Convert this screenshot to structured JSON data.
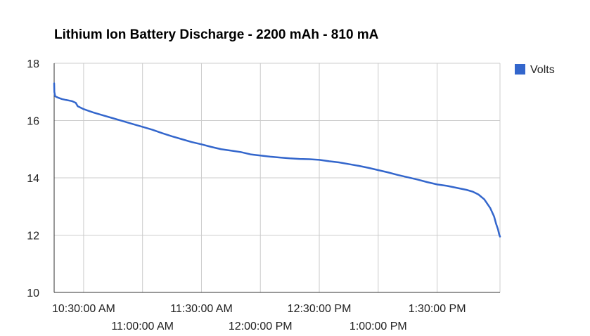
{
  "chart_data": {
    "type": "line",
    "title": "Lithium Ion Battery Discharge - 2200 mAh - 810 mA",
    "xlabel": "",
    "ylabel": "",
    "ylim": [
      10,
      18
    ],
    "yticks": [
      "10",
      "12",
      "14",
      "16",
      "18"
    ],
    "xlim": [
      "10:15:00",
      "14:02:00"
    ],
    "xticks": [
      {
        "time": "10:30:00",
        "label": "10:30:00 AM",
        "row": 1
      },
      {
        "time": "11:00:00",
        "label": "11:00:00 AM",
        "row": 2
      },
      {
        "time": "11:30:00",
        "label": "11:30:00 AM",
        "row": 1
      },
      {
        "time": "12:00:00",
        "label": "12:00:00 PM",
        "row": 2
      },
      {
        "time": "12:30:00",
        "label": "12:30:00 PM",
        "row": 1
      },
      {
        "time": "13:00:00",
        "label": "1:00:00 PM",
        "row": 2
      },
      {
        "time": "13:30:00",
        "label": "1:30:00 PM",
        "row": 1
      }
    ],
    "grid": true,
    "legend_position": "right",
    "series": [
      {
        "name": "Volts",
        "color": "#3366cc",
        "x": [
          "10:15:00",
          "10:15:06",
          "10:15:30",
          "10:16:00",
          "10:17:00",
          "10:19:00",
          "10:21:00",
          "10:24:00",
          "10:26:00",
          "10:27:00",
          "10:30:00",
          "10:35:00",
          "10:40:00",
          "10:45:00",
          "10:50:00",
          "10:55:00",
          "11:00:00",
          "11:05:00",
          "11:10:00",
          "11:15:00",
          "11:20:00",
          "11:25:00",
          "11:30:00",
          "11:35:00",
          "11:40:00",
          "11:45:00",
          "11:50:00",
          "11:55:00",
          "12:00:00",
          "12:05:00",
          "12:10:00",
          "12:15:00",
          "12:20:00",
          "12:25:00",
          "12:30:00",
          "12:35:00",
          "12:40:00",
          "12:45:00",
          "12:50:00",
          "12:55:00",
          "13:00:00",
          "13:05:00",
          "13:10:00",
          "13:15:00",
          "13:20:00",
          "13:25:00",
          "13:30:00",
          "13:35:00",
          "13:40:00",
          "13:45:00",
          "13:48:00",
          "13:51:00",
          "13:54:00",
          "13:57:00",
          "13:59:00",
          "14:00:00",
          "14:01:00",
          "14:01:30",
          "14:02:00"
        ],
        "values": [
          17.3,
          17.0,
          16.85,
          16.83,
          16.8,
          16.75,
          16.72,
          16.68,
          16.62,
          16.5,
          16.4,
          16.28,
          16.18,
          16.08,
          15.98,
          15.88,
          15.78,
          15.68,
          15.56,
          15.45,
          15.35,
          15.25,
          15.17,
          15.08,
          15.0,
          14.95,
          14.9,
          14.82,
          14.78,
          14.74,
          14.71,
          14.68,
          14.66,
          14.65,
          14.63,
          14.58,
          14.54,
          14.48,
          14.42,
          14.35,
          14.27,
          14.19,
          14.1,
          14.02,
          13.94,
          13.85,
          13.77,
          13.72,
          13.65,
          13.58,
          13.52,
          13.42,
          13.25,
          12.95,
          12.65,
          12.4,
          12.2,
          12.05,
          11.95
        ]
      }
    ]
  }
}
